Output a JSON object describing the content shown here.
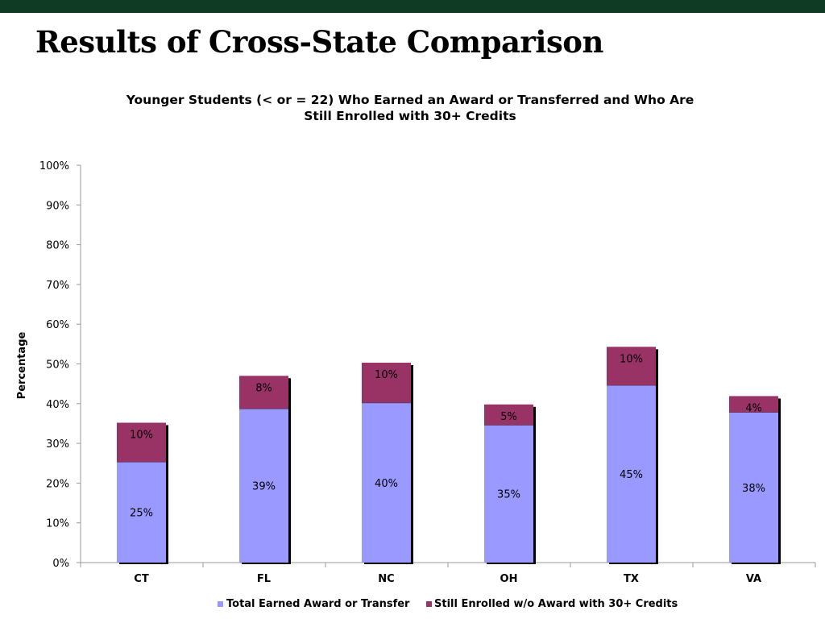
{
  "slide": {
    "title": "Results of Cross-State Comparison",
    "header_bar_color": "#0f3b24"
  },
  "chart_data": {
    "type": "bar",
    "stacked": true,
    "title_line1": "Younger Students (< or = 22) Who Earned an Award or Transferred and Who Are",
    "title_line2": "Still Enrolled with 30+ Credits",
    "ylabel": "Percentage",
    "xlabel": "",
    "ylim": [
      0,
      100
    ],
    "yticks": [
      "0%",
      "10%",
      "20%",
      "30%",
      "40%",
      "50%",
      "60%",
      "70%",
      "80%",
      "90%",
      "100%"
    ],
    "categories": [
      "CT",
      "FL",
      "NC",
      "OH",
      "TX",
      "VA"
    ],
    "series": [
      {
        "name": "Total Earned Award or Transfer",
        "color": "#9999ff",
        "values": [
          25.3,
          38.7,
          40.2,
          34.6,
          44.6,
          37.8
        ],
        "labels": [
          "25%",
          "39%",
          "40%",
          "35%",
          "45%",
          "38%"
        ]
      },
      {
        "name": "Still Enrolled w/o Award with 30+ Credits",
        "color": "#993366",
        "values": [
          9.9,
          8.3,
          10.1,
          5.2,
          9.7,
          4.1
        ],
        "labels": [
          "10%",
          "8%",
          "10%",
          "5%",
          "10%",
          "4%"
        ]
      }
    ],
    "grid": false,
    "legend_position": "bottom"
  }
}
